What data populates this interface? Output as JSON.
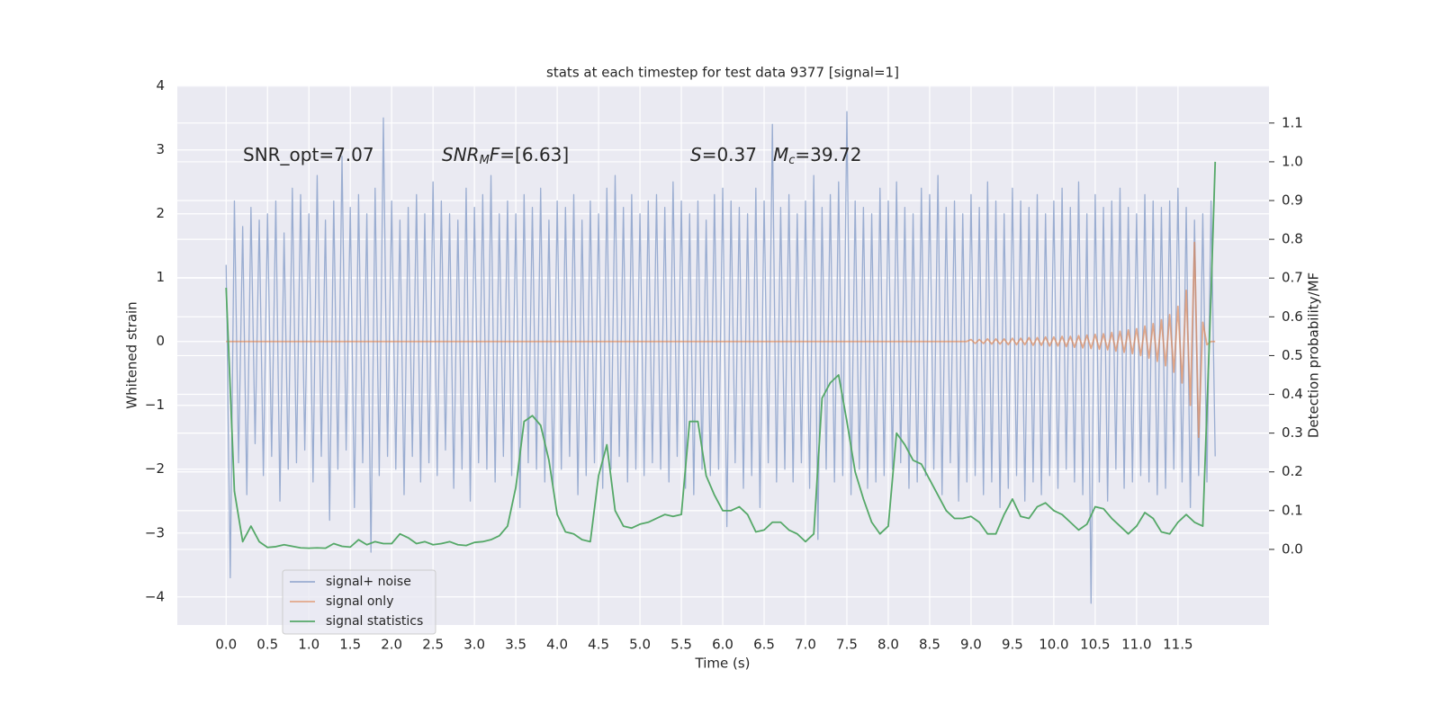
{
  "chart_data": {
    "type": "line",
    "title": "stats at each timestep for test data 9377 [signal=1]",
    "xlabel": "Time (s)",
    "ylabel": "Whitened strain",
    "y2label": "Detection probability/MF",
    "annotations": [
      [
        {
          "text": "SNR_opt=7.07"
        }
      ],
      [
        {
          "text": "SNR",
          "style": "italic"
        },
        {
          "text": "M",
          "style": "sub"
        },
        {
          "text": "F",
          "style": "italic"
        },
        {
          "text": "=[6.63]"
        }
      ],
      [
        {
          "text": "S",
          "style": "italic"
        },
        {
          "text": "=0.37"
        }
      ],
      [
        {
          "text": "M",
          "style": "italic"
        },
        {
          "text": "c",
          "style": "sub"
        },
        {
          "text": "=39.72"
        }
      ]
    ],
    "xlim": [
      -0.59,
      12.6
    ],
    "ylim": [
      -4.44,
      4.01
    ],
    "y2lim": [
      -0.195,
      1.197
    ],
    "xticks": [
      {
        "value": 0,
        "label": "0.0"
      },
      {
        "value": 0.5,
        "label": "0.5"
      },
      {
        "value": 1,
        "label": "1.0"
      },
      {
        "value": 1.5,
        "label": "1.5"
      },
      {
        "value": 2,
        "label": "2.0"
      },
      {
        "value": 2.5,
        "label": "2.5"
      },
      {
        "value": 3,
        "label": "3.0"
      },
      {
        "value": 3.5,
        "label": "3.5"
      },
      {
        "value": 4,
        "label": "4.0"
      },
      {
        "value": 4.5,
        "label": "4.5"
      },
      {
        "value": 5,
        "label": "5.0"
      },
      {
        "value": 5.5,
        "label": "5.5"
      },
      {
        "value": 6,
        "label": "6.0"
      },
      {
        "value": 6.5,
        "label": "6.5"
      },
      {
        "value": 7,
        "label": "7.0"
      },
      {
        "value": 7.5,
        "label": "7.5"
      },
      {
        "value": 8,
        "label": "8.0"
      },
      {
        "value": 8.5,
        "label": "8.5"
      },
      {
        "value": 9,
        "label": "9.0"
      },
      {
        "value": 9.5,
        "label": "9.5"
      },
      {
        "value": 10,
        "label": "10.0"
      },
      {
        "value": 10.5,
        "label": "10.5"
      },
      {
        "value": 11,
        "label": "11.0"
      },
      {
        "value": 11.5,
        "label": "11.5"
      }
    ],
    "yticks": [
      {
        "value": -4,
        "label": "−4"
      },
      {
        "value": -3,
        "label": "−3"
      },
      {
        "value": -2,
        "label": "−2"
      },
      {
        "value": -1,
        "label": "−1"
      },
      0,
      1,
      2,
      3,
      4
    ],
    "y2ticks": [
      {
        "value": 0,
        "label": "0.0"
      },
      {
        "value": 0.1,
        "label": "0.1"
      },
      {
        "value": 0.2,
        "label": "0.2"
      },
      {
        "value": 0.3,
        "label": "0.3"
      },
      {
        "value": 0.4,
        "label": "0.4"
      },
      {
        "value": 0.5,
        "label": "0.5"
      },
      {
        "value": 0.6,
        "label": "0.6"
      },
      {
        "value": 0.7,
        "label": "0.7"
      },
      {
        "value": 0.8,
        "label": "0.8"
      },
      {
        "value": 0.9,
        "label": "0.9"
      },
      {
        "value": 1,
        "label": "1.0"
      },
      {
        "value": 1.1,
        "label": "1.1"
      }
    ],
    "grid": true,
    "legend": "lower left",
    "x": [
      0,
      0.05,
      0.1,
      0.15,
      0.2,
      0.25,
      0.3,
      0.35,
      0.4,
      0.45,
      0.5,
      0.55,
      0.6,
      0.65,
      0.7,
      0.75,
      0.8,
      0.85,
      0.9,
      0.95,
      1,
      1.05,
      1.1,
      1.15,
      1.2,
      1.25,
      1.3,
      1.35,
      1.4,
      1.45,
      1.5,
      1.55,
      1.6,
      1.65,
      1.7,
      1.75,
      1.8,
      1.85,
      1.9,
      1.95,
      2,
      2.05,
      2.1,
      2.15,
      2.2,
      2.25,
      2.3,
      2.35,
      2.4,
      2.45,
      2.5,
      2.55,
      2.6,
      2.65,
      2.7,
      2.75,
      2.8,
      2.85,
      2.9,
      2.95,
      3,
      3.05,
      3.1,
      3.15,
      3.2,
      3.25,
      3.3,
      3.35,
      3.4,
      3.45,
      3.5,
      3.55,
      3.6,
      3.65,
      3.7,
      3.75,
      3.8,
      3.85,
      3.9,
      3.95,
      4,
      4.05,
      4.1,
      4.15,
      4.2,
      4.25,
      4.3,
      4.35,
      4.4,
      4.45,
      4.5,
      4.55,
      4.6,
      4.65,
      4.7,
      4.75,
      4.8,
      4.85,
      4.9,
      4.95,
      5,
      5.05,
      5.1,
      5.15,
      5.2,
      5.25,
      5.3,
      5.35,
      5.4,
      5.45,
      5.5,
      5.55,
      5.6,
      5.65,
      5.7,
      5.75,
      5.8,
      5.85,
      5.9,
      5.95,
      6,
      6.05,
      6.1,
      6.15,
      6.2,
      6.25,
      6.3,
      6.35,
      6.4,
      6.45,
      6.5,
      6.55,
      6.6,
      6.65,
      6.7,
      6.75,
      6.8,
      6.85,
      6.9,
      6.95,
      7,
      7.05,
      7.1,
      7.15,
      7.2,
      7.25,
      7.3,
      7.35,
      7.4,
      7.45,
      7.5,
      7.55,
      7.6,
      7.65,
      7.7,
      7.75,
      7.8,
      7.85,
      7.9,
      7.95,
      8,
      8.05,
      8.1,
      8.15,
      8.2,
      8.25,
      8.3,
      8.35,
      8.4,
      8.45,
      8.5,
      8.55,
      8.6,
      8.65,
      8.7,
      8.75,
      8.8,
      8.85,
      8.9,
      8.95,
      9,
      9.05,
      9.1,
      9.15,
      9.2,
      9.25,
      9.3,
      9.35,
      9.4,
      9.45,
      9.5,
      9.55,
      9.6,
      9.65,
      9.7,
      9.75,
      9.8,
      9.85,
      9.9,
      9.95,
      10,
      10.05,
      10.1,
      10.15,
      10.2,
      10.25,
      10.3,
      10.35,
      10.4,
      10.45,
      10.5,
      10.55,
      10.6,
      10.65,
      10.7,
      10.75,
      10.8,
      10.85,
      10.9,
      10.95,
      11,
      11.05,
      11.1,
      11.15,
      11.2,
      11.25,
      11.3,
      11.35,
      11.4,
      11.45,
      11.5,
      11.55,
      11.6,
      11.65,
      11.7,
      11.75,
      11.8,
      11.85,
      11.9,
      11.95
    ],
    "series": [
      {
        "name": "signal+ noise",
        "color": "#9aadd1",
        "values": [
          1.2,
          -3.7,
          2.2,
          -1.9,
          1.8,
          -2.4,
          2.1,
          -1.6,
          1.9,
          -2.1,
          2.0,
          -1.8,
          2.2,
          -2.5,
          1.7,
          -2.0,
          2.4,
          -1.9,
          2.3,
          -1.7,
          2.0,
          -2.2,
          2.6,
          -1.8,
          1.9,
          -2.8,
          2.2,
          -2.0,
          2.9,
          -1.7,
          2.1,
          -2.6,
          2.3,
          -1.9,
          2.0,
          -3.3,
          2.4,
          -2.1,
          3.5,
          -1.8,
          2.2,
          -2.0,
          1.9,
          -2.4,
          2.1,
          -1.8,
          2.3,
          -2.2,
          2.0,
          -1.9,
          2.5,
          -2.1,
          2.2,
          -1.7,
          2.0,
          -2.3,
          1.9,
          -2.0,
          2.4,
          -2.5,
          2.1,
          -1.9,
          2.3,
          -2.0,
          2.6,
          -2.2,
          2.0,
          -1.8,
          2.2,
          -2.1,
          2.0,
          -2.6,
          2.3,
          -1.9,
          2.1,
          -2.0,
          2.4,
          -2.2,
          1.9,
          -2.3,
          2.2,
          -2.0,
          2.1,
          -1.8,
          2.3,
          -2.4,
          1.9,
          -2.1,
          2.2,
          -1.9,
          2.0,
          -2.3,
          2.4,
          -2.0,
          2.6,
          -1.8,
          2.1,
          -2.2,
          2.3,
          -2.0,
          2.0,
          -2.1,
          2.2,
          -1.9,
          2.3,
          -2.0,
          2.1,
          -2.2,
          2.5,
          -1.8,
          2.2,
          -2.3,
          2.0,
          -2.4,
          2.2,
          -2.0,
          1.9,
          -2.1,
          2.3,
          -2.0,
          2.4,
          -2.9,
          2.2,
          -1.9,
          2.1,
          -2.3,
          2.0,
          -2.1,
          2.4,
          -2.6,
          2.2,
          -1.9,
          3.4,
          -2.2,
          2.1,
          -2.0,
          2.3,
          -2.2,
          2.0,
          -1.9,
          2.2,
          -2.3,
          2.6,
          -3.1,
          2.1,
          -2.0,
          2.3,
          -2.2,
          2.5,
          -2.1,
          3.6,
          -2.4,
          2.2,
          -2.0,
          2.1,
          -2.3,
          2.0,
          -2.2,
          2.4,
          -2.1,
          2.2,
          -2.0,
          2.5,
          -1.9,
          2.1,
          -2.3,
          2.0,
          -2.2,
          2.4,
          -2.1,
          2.3,
          -2.0,
          2.6,
          -2.4,
          2.1,
          -1.9,
          2.2,
          -2.5,
          2.0,
          -2.2,
          2.3,
          -2.1,
          2.1,
          -2.4,
          2.5,
          -2.2,
          2.2,
          -2.6,
          2.0,
          -2.3,
          2.4,
          -2.1,
          2.2,
          -2.5,
          2.1,
          -2.2,
          2.3,
          -2.4,
          2.0,
          -2.1,
          2.2,
          -2.3,
          2.4,
          -2.0,
          2.1,
          -2.2,
          2.5,
          -2.4,
          2.0,
          -4.1,
          2.3,
          -2.2,
          2.1,
          -2.5,
          2.2,
          -2.0,
          2.4,
          -2.3,
          2.1,
          -2.2,
          2.0,
          -2.1,
          2.3,
          -2.2,
          2.2,
          -2.4,
          2.1,
          -2.3,
          2.2,
          -2.0,
          2.4,
          -2.2,
          2.1,
          -2.6,
          1.9,
          -2.1,
          2.0,
          -2.2,
          2.2,
          -1.8
        ]
      },
      {
        "name": "signal only",
        "color": "#dd8452",
        "values": [
          0,
          0,
          0,
          0,
          0,
          0,
          0,
          0,
          0,
          0,
          0,
          0,
          0,
          0,
          0,
          0,
          0,
          0,
          0,
          0,
          0,
          0,
          0,
          0,
          0,
          0,
          0,
          0,
          0,
          0,
          0,
          0,
          0,
          0,
          0,
          0,
          0,
          0,
          0,
          0,
          0,
          0,
          0,
          0,
          0,
          0,
          0,
          0,
          0,
          0,
          0,
          0,
          0,
          0,
          0,
          0,
          0,
          0,
          0,
          0,
          0,
          0,
          0,
          0,
          0,
          0,
          0,
          0,
          0,
          0,
          0,
          0,
          0,
          0,
          0,
          0,
          0,
          0,
          0,
          0,
          0,
          0,
          0,
          0,
          0,
          0,
          0,
          0,
          0,
          0,
          0,
          0,
          0,
          0,
          0,
          0,
          0,
          0,
          0,
          0,
          0,
          0,
          0,
          0,
          0,
          0,
          0,
          0,
          0,
          0,
          0,
          0,
          0,
          0,
          0,
          0,
          0,
          0,
          0,
          0,
          0,
          0,
          0,
          0,
          0,
          0,
          0,
          0,
          0,
          0,
          0,
          0,
          0,
          0,
          0,
          0,
          0,
          0,
          0,
          0,
          0,
          0,
          0,
          0,
          0,
          0,
          0,
          0,
          0,
          0,
          0,
          0,
          0,
          0,
          0,
          0,
          0,
          0,
          0,
          0,
          0,
          0,
          0,
          0,
          0,
          0,
          0,
          0,
          0,
          0,
          0,
          0,
          0,
          0,
          0,
          0,
          0,
          0,
          0,
          0,
          0.03,
          -0.03,
          0.03,
          -0.03,
          0.04,
          -0.04,
          0.04,
          -0.04,
          0.04,
          -0.05,
          0.05,
          -0.05,
          0.05,
          -0.05,
          0.06,
          -0.06,
          0.06,
          -0.06,
          0.07,
          -0.07,
          0.07,
          -0.07,
          0.08,
          -0.08,
          0.08,
          -0.09,
          0.09,
          -0.1,
          0.1,
          -0.11,
          0.11,
          -0.12,
          0.12,
          -0.13,
          0.14,
          -0.15,
          0.16,
          -0.17,
          0.18,
          -0.19,
          0.2,
          -0.22,
          0.24,
          -0.26,
          0.28,
          -0.31,
          0.34,
          -0.38,
          0.42,
          -0.48,
          0.55,
          -0.65,
          0.8,
          -1.0,
          1.55,
          -1.5,
          0.3,
          -0.05,
          0,
          0
        ]
      },
      {
        "name": "signal statistics",
        "color": "#55a868",
        "axis": "y2",
        "x": [
          0,
          0.1,
          0.2,
          0.3,
          0.4,
          0.5,
          0.6,
          0.7,
          0.8,
          0.9,
          1,
          1.1,
          1.2,
          1.3,
          1.4,
          1.5,
          1.6,
          1.7,
          1.8,
          1.9,
          2,
          2.1,
          2.2,
          2.3,
          2.4,
          2.5,
          2.6,
          2.7,
          2.8,
          2.9,
          3,
          3.1,
          3.2,
          3.3,
          3.4,
          3.5,
          3.6,
          3.7,
          3.8,
          3.9,
          4,
          4.1,
          4.2,
          4.3,
          4.4,
          4.5,
          4.6,
          4.7,
          4.8,
          4.9,
          5,
          5.1,
          5.2,
          5.3,
          5.4,
          5.5,
          5.6,
          5.7,
          5.8,
          5.9,
          6,
          6.1,
          6.2,
          6.3,
          6.4,
          6.5,
          6.6,
          6.7,
          6.8,
          6.9,
          7,
          7.1,
          7.2,
          7.3,
          7.4,
          7.5,
          7.6,
          7.7,
          7.8,
          7.9,
          8,
          8.1,
          8.2,
          8.3,
          8.4,
          8.5,
          8.6,
          8.7,
          8.8,
          8.9,
          9,
          9.1,
          9.2,
          9.3,
          9.4,
          9.5,
          9.6,
          9.7,
          9.8,
          9.9,
          10,
          10.1,
          10.2,
          10.3,
          10.4,
          10.5,
          10.6,
          10.7,
          10.8,
          10.9,
          11,
          11.1,
          11.2,
          11.3,
          11.4,
          11.5,
          11.6,
          11.7,
          11.8,
          11.9,
          11.95
        ],
        "values": [
          0.675,
          0.15,
          0.02,
          0.06,
          0.02,
          0.005,
          0.007,
          0.012,
          0.008,
          0.004,
          0.003,
          0.004,
          0.003,
          0.015,
          0.008,
          0.006,
          0.025,
          0.012,
          0.02,
          0.015,
          0.015,
          0.04,
          0.03,
          0.015,
          0.02,
          0.012,
          0.015,
          0.02,
          0.012,
          0.01,
          0.018,
          0.02,
          0.025,
          0.035,
          0.06,
          0.16,
          0.33,
          0.345,
          0.32,
          0.23,
          0.09,
          0.045,
          0.04,
          0.025,
          0.02,
          0.19,
          0.27,
          0.1,
          0.06,
          0.055,
          0.065,
          0.07,
          0.08,
          0.09,
          0.085,
          0.09,
          0.33,
          0.33,
          0.19,
          0.14,
          0.1,
          0.1,
          0.11,
          0.09,
          0.045,
          0.05,
          0.07,
          0.07,
          0.05,
          0.04,
          0.02,
          0.04,
          0.39,
          0.43,
          0.45,
          0.33,
          0.2,
          0.13,
          0.07,
          0.04,
          0.06,
          0.3,
          0.27,
          0.23,
          0.22,
          0.18,
          0.14,
          0.1,
          0.08,
          0.08,
          0.085,
          0.07,
          0.04,
          0.04,
          0.09,
          0.13,
          0.085,
          0.08,
          0.11,
          0.12,
          0.1,
          0.09,
          0.07,
          0.05,
          0.065,
          0.11,
          0.105,
          0.08,
          0.06,
          0.04,
          0.06,
          0.095,
          0.08,
          0.045,
          0.04,
          0.07,
          0.09,
          0.07,
          0.06,
          0.66,
          1.0
        ]
      }
    ]
  }
}
